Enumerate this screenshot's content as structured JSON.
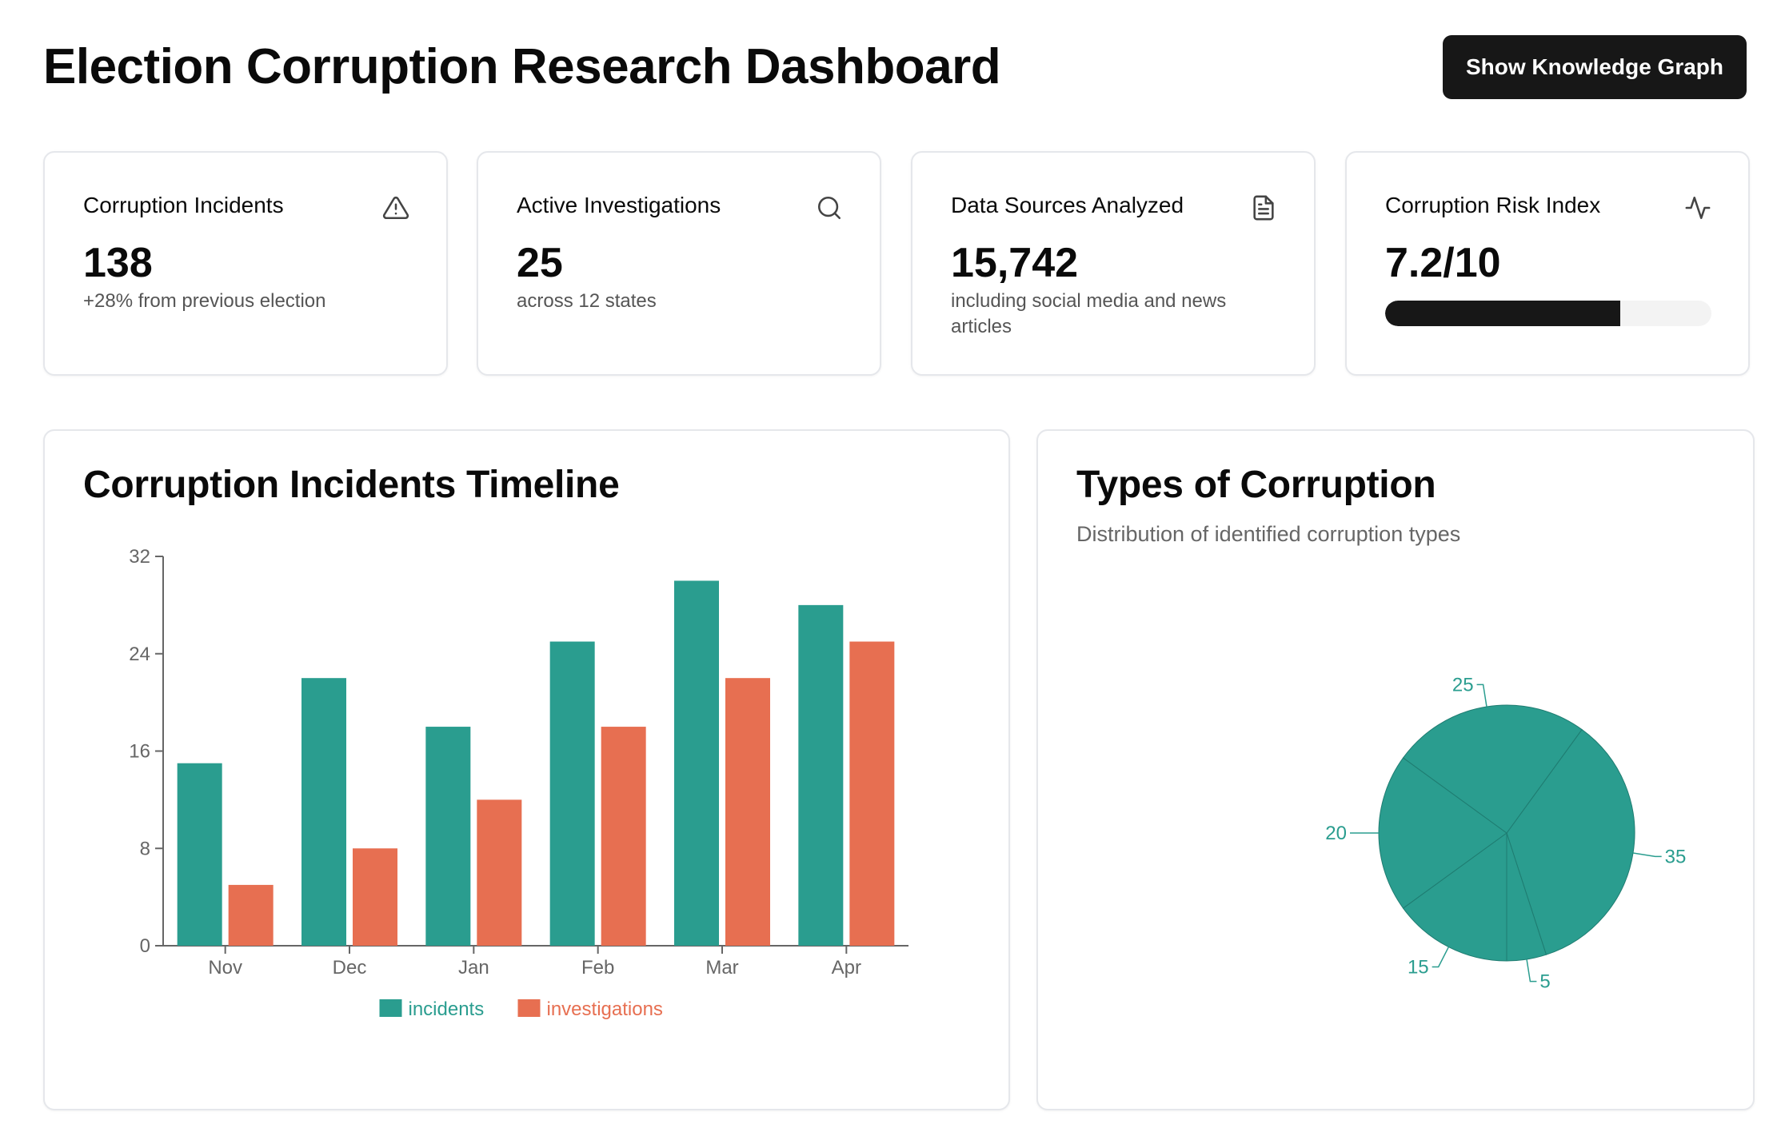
{
  "header": {
    "title": "Election Corruption Research Dashboard",
    "graph_button_label": "Show Knowledge Graph"
  },
  "stats": [
    {
      "label": "Corruption Incidents",
      "value": "138",
      "subtitle": "+28% from previous election",
      "icon": "alert-triangle-icon"
    },
    {
      "label": "Active Investigations",
      "value": "25",
      "subtitle": "across 12 states",
      "icon": "search-icon"
    },
    {
      "label": "Data Sources Analyzed",
      "value": "15,742",
      "subtitle": "including social media and news articles",
      "icon": "file-text-icon"
    },
    {
      "label": "Corruption Risk Index",
      "value": "7.2/10",
      "progress": 0.72,
      "icon": "activity-icon"
    }
  ],
  "timeline": {
    "title": "Corruption Incidents Timeline"
  },
  "types": {
    "title": "Types of Corruption",
    "description": "Distribution of identified corruption types"
  },
  "colors": {
    "incidents": "#2a9d8f",
    "investigations": "#e76f51",
    "pie": "#2a9d8f"
  },
  "chart_data": [
    {
      "type": "bar",
      "title": "Corruption Incidents Timeline",
      "categories": [
        "Nov",
        "Dec",
        "Jan",
        "Feb",
        "Mar",
        "Apr"
      ],
      "series": [
        {
          "name": "incidents",
          "values": [
            15,
            22,
            18,
            25,
            30,
            28
          ]
        },
        {
          "name": "investigations",
          "values": [
            5,
            8,
            12,
            18,
            22,
            25
          ]
        }
      ],
      "yticks": [
        0,
        8,
        16,
        24,
        32
      ],
      "ylim": [
        0,
        32
      ],
      "xlabel": "",
      "ylabel": "",
      "legend": "bottom-center"
    },
    {
      "type": "pie",
      "title": "Types of Corruption",
      "labels": [
        "35",
        "5",
        "15",
        "20",
        "25"
      ],
      "values": [
        35,
        5,
        15,
        20,
        25
      ],
      "legend": "none"
    }
  ]
}
